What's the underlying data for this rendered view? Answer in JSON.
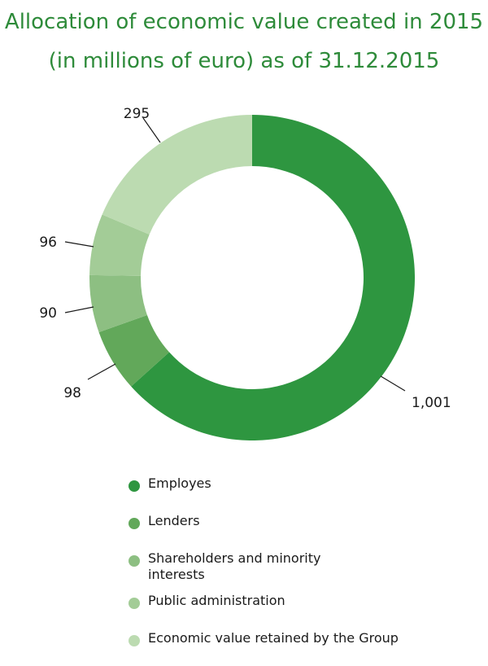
{
  "title_line1": "Allocation of economic value created in 2015",
  "title_line2": "(in millions of euro) as of 31.12.2015",
  "chart_data": {
    "type": "pie",
    "donut": true,
    "series": [
      {
        "name": "Employes",
        "value": 1001,
        "label": "1,001",
        "color": "#2e9640"
      },
      {
        "name": "Lenders",
        "value": 98,
        "label": "98",
        "color": "#62a85a"
      },
      {
        "name": "Shareholders and minority interests",
        "value": 90,
        "label": "90",
        "color": "#8dbf82"
      },
      {
        "name": "Public administration",
        "value": 96,
        "label": "96",
        "color": "#a3cc97"
      },
      {
        "name": "Economic value retained by the Group",
        "value": 295,
        "label": "295",
        "color": "#bcdbb1"
      }
    ],
    "legend_position": "bottom"
  },
  "legend": [
    {
      "label": "Employes",
      "color": "#2e9640"
    },
    {
      "label": "Lenders",
      "color": "#62a85a"
    },
    {
      "label": "Shareholders and minority interests",
      "color": "#8dbf82"
    },
    {
      "label": "Public administration",
      "color": "#a3cc97"
    },
    {
      "label": "Economic value retained by the Group",
      "color": "#bcdbb1"
    }
  ]
}
